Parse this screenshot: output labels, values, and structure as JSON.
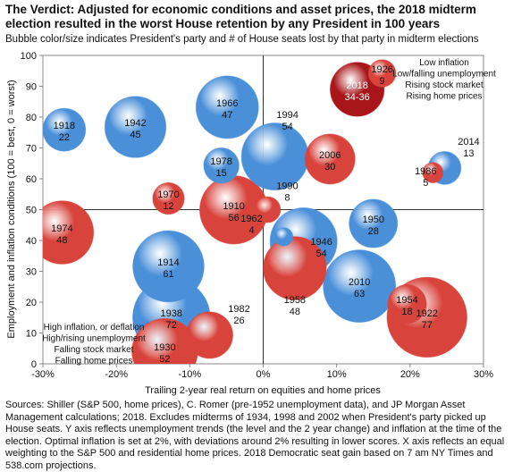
{
  "chart_data": {
    "type": "bubble",
    "title": "The Verdict: Adjusted for economic conditions and asset prices, the 2018 midterm election resulted in the worst House retention by any President in 100 years",
    "subtitle": "Bubble color/size indicates President's party and # of House seats lost by that party in midterm elections",
    "x_label": "Trailing 2-year real return on equities and home prices",
    "y_label": "Employment and inflation conditions (100 = best, 0 = worst)",
    "sources": "Sources: Shiller (S&P 500, home prices), C. Romer (pre-1952 unemployment data), and JP Morgan Asset Management calculations; 2018. Excludes midterms of 1934, 1998 and 2002 when President's party picked up House seats.   Y axis reflects unemployment trends (the level and the 2 year change) and inflation at the time of the election.  Optimal inflation is set at 2%, with deviations around 2% resulting in lower scores.  X axis reflects an equal weighting to the S&P 500 and residential home prices.  2018 Democratic seat gain based on 7 am NY Times and 538.com projections.",
    "annotations": [
      [
        "Low inflation",
        "Low/falling unemployment",
        "Rising stock market",
        "Rising home prices"
      ],
      [
        "High inflation, or deflation",
        "High/rising unemployment",
        "Falling stock market",
        "Falling home prices"
      ]
    ],
    "labels": [
      "1918",
      "1942",
      "1966",
      "1978",
      "1970",
      "1974",
      "1914",
      "1938",
      "1930",
      "1982",
      "1910",
      "1990",
      "1994",
      "2006",
      "1962",
      "1946",
      "1958",
      "1950",
      "2010",
      "2018",
      "1926",
      "1986",
      "2014",
      "1954",
      "1922"
    ],
    "x": [
      -27.1,
      -17.4,
      -4.9,
      -5.7,
      -12.9,
      -27.4,
      -12.9,
      -12.5,
      -13.4,
      -7.3,
      -4,
      0.6,
      1.6,
      9.1,
      2.8,
      5.5,
      4.3,
      15,
      13.1,
      12.8,
      16.2,
      23.1,
      24.7,
      19.6,
      22.3
    ],
    "y": [
      75.9,
      76.8,
      83.2,
      64.3,
      53.6,
      42.6,
      31.6,
      15.1,
      4,
      9.3,
      49.9,
      50,
      67.2,
      66.4,
      41.2,
      39.7,
      31,
      45.5,
      25.2,
      89,
      94.2,
      62,
      63.5,
      19.4,
      15.1
    ],
    "sizes": [
      22,
      45,
      47,
      15,
      12,
      48,
      61,
      72,
      52,
      26,
      56,
      8,
      54,
      30,
      4,
      54,
      48,
      28,
      63,
      35,
      9,
      5,
      13,
      18,
      77
    ],
    "value_labels": [
      "22",
      "45",
      "47",
      "15",
      "12",
      "48",
      "61",
      "72",
      "52",
      "26",
      "56",
      "8",
      "54",
      "30",
      "4",
      "54",
      "48",
      "28",
      "63",
      "34-36",
      "9",
      "5",
      "13",
      "18",
      "77"
    ],
    "colors": [
      "#4a90d9",
      "#4a90d9",
      "#4a90d9",
      "#4a90d9",
      "#d8443c",
      "#d8443c",
      "#4a90d9",
      "#4a90d9",
      "#d8443c",
      "#d8443c",
      "#d8443c",
      "#d8443c",
      "#4a90d9",
      "#d8443c",
      "#4a90d9",
      "#4a90d9",
      "#d8443c",
      "#4a90d9",
      "#4a90d9",
      "#a8161a",
      "#d8443c",
      "#d8443c",
      "#4a90d9",
      "#d8443c",
      "#d8443c"
    ],
    "xlim": [
      -30,
      30
    ],
    "xticks": [
      {
        "value": -30,
        "label": "-30%"
      },
      {
        "value": -20,
        "label": "-20%"
      },
      {
        "value": -10,
        "label": "-10%"
      },
      {
        "value": 0,
        "label": "0%"
      },
      {
        "value": 10,
        "label": "10%"
      },
      {
        "value": 20,
        "label": "20%"
      },
      {
        "value": 30,
        "label": "30%"
      }
    ],
    "ylim": [
      0,
      100
    ],
    "yticks": [
      0,
      10,
      20,
      30,
      40,
      50,
      60,
      70,
      80,
      90,
      100
    ],
    "quadrant_lines": {
      "x": 0,
      "y": 50
    }
  }
}
